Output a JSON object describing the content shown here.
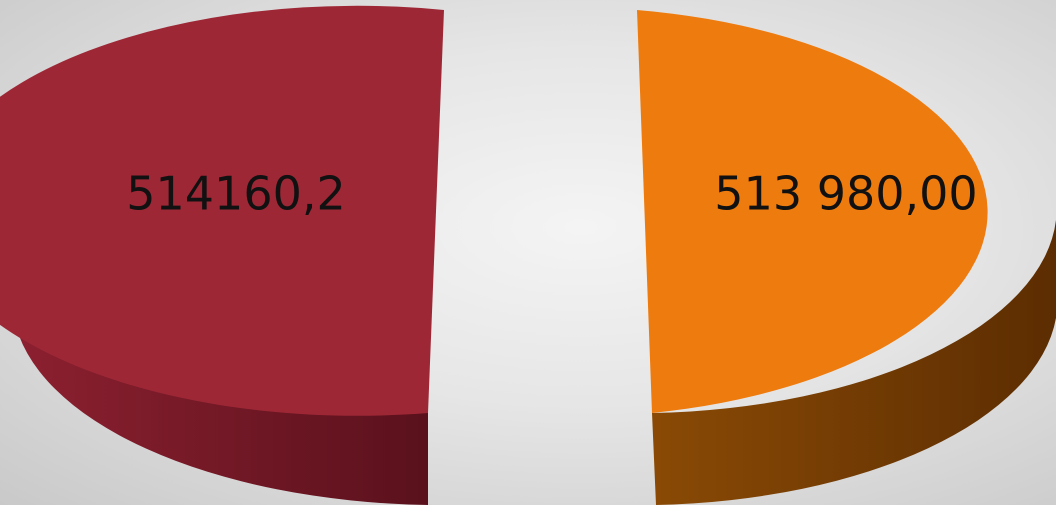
{
  "chart_data": {
    "type": "pie",
    "style": "3d-exploded",
    "series": [
      {
        "slices": [
          {
            "value": 514160.2,
            "label": "514160,2",
            "color": "#9e2736",
            "color_side_light": "#8c2030",
            "color_side_dark": "#5a111c"
          },
          {
            "value": 513980.0,
            "label": "513 980,00",
            "color": "#ee7b0e",
            "color_side_light": "#8a4a05",
            "color_side_dark": "#5c2d02"
          }
        ]
      }
    ],
    "title": "",
    "legend": "none",
    "grid": false
  }
}
